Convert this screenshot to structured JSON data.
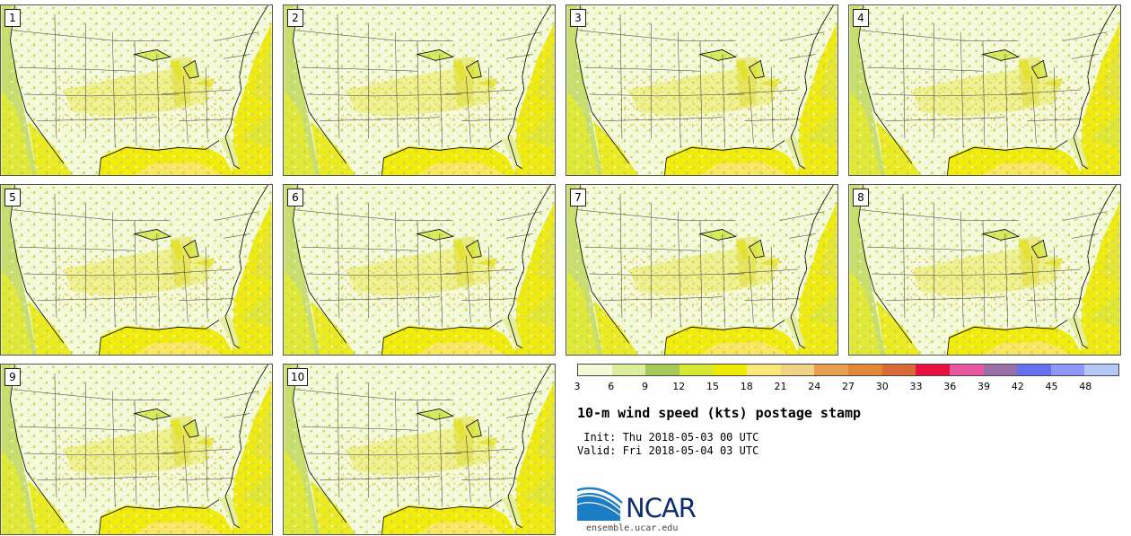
{
  "panels": [
    {
      "label": "1"
    },
    {
      "label": "2"
    },
    {
      "label": "3"
    },
    {
      "label": "4"
    },
    {
      "label": "5"
    },
    {
      "label": "6"
    },
    {
      "label": "7"
    },
    {
      "label": "8"
    },
    {
      "label": "9"
    },
    {
      "label": "10"
    }
  ],
  "colorbar": {
    "colors": [
      "#f4f9d8",
      "#dcee9c",
      "#a8c85c",
      "#d6e830",
      "#f0ea00",
      "#fae87a",
      "#f2d284",
      "#e8a050",
      "#e08838",
      "#d86a38",
      "#e81040",
      "#e858a0",
      "#9a70a8",
      "#6670f0",
      "#8c98f8",
      "#b4c8f8"
    ],
    "ticks": [
      "3",
      "6",
      "9",
      "12",
      "15",
      "18",
      "21",
      "24",
      "27",
      "30",
      "33",
      "36",
      "39",
      "42",
      "45",
      "48"
    ]
  },
  "title": "10-m wind speed (kts) postage stamp",
  "init_line": " Init: Thu 2018-05-03 00 UTC",
  "valid_line": "Valid: Fri 2018-05-04 03 UTC",
  "logo": {
    "text": "NCAR",
    "url": "ensemble.ucar.edu"
  }
}
